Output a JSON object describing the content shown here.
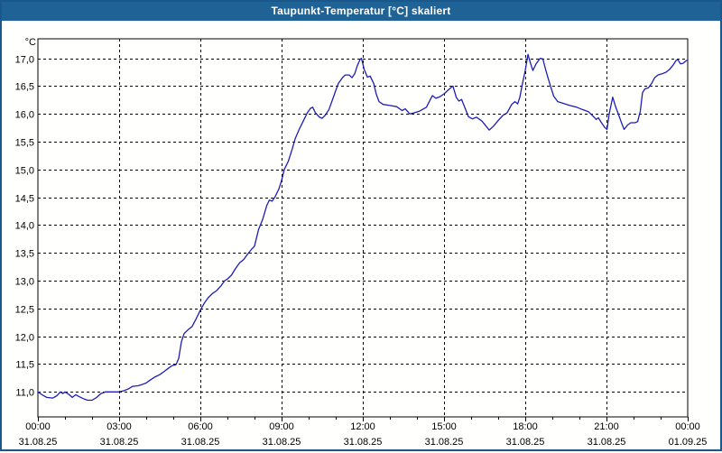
{
  "window": {
    "title": "Taupunkt-Temperatur [°C] skaliert",
    "title_bar_color": "#1f6396",
    "border_color": "#1a578a",
    "background_color": "#ffffff"
  },
  "chart_data": {
    "type": "line",
    "title": "Taupunkt-Temperatur [°C] skaliert",
    "legend": "none",
    "grid": "dashed",
    "y_axis": {
      "unit_label": "°C",
      "tick_values": [
        17.0,
        16.5,
        16.0,
        15.5,
        15.0,
        14.5,
        14.0,
        13.5,
        13.0,
        12.5,
        12.0,
        11.5,
        11.0
      ],
      "tick_labels": [
        "17,0",
        "16,5",
        "16,0",
        "15,5",
        "15,0",
        "14,5",
        "14,0",
        "13,5",
        "13,0",
        "12,5",
        "12,0",
        "11,5",
        "11,0"
      ],
      "axis_min": 10.55,
      "axis_max": 17.35
    },
    "x_axis": {
      "range_hours": [
        0,
        24
      ],
      "major_tick_hours": [
        0,
        3,
        6,
        9,
        12,
        15,
        18,
        21,
        24
      ],
      "minor_tick_interval_hours": 1,
      "grid_hours": [
        3,
        6,
        9,
        12,
        15,
        18,
        21
      ],
      "time_labels": [
        "00:00",
        "03:00",
        "06:00",
        "09:00",
        "12:00",
        "15:00",
        "18:00",
        "21:00",
        "00:00"
      ],
      "date_labels": [
        "31.08.25",
        "31.08.25",
        "31.08.25",
        "31.08.25",
        "31.08.25",
        "31.08.25",
        "31.08.25",
        "31.08.25",
        "01.09.25"
      ]
    },
    "series": [
      {
        "name": "Taupunkt-Temperatur",
        "color": "#1d1db5",
        "x_hours": [
          0.0,
          0.15,
          0.33,
          0.55,
          0.7,
          0.83,
          0.92,
          1.0,
          1.13,
          1.27,
          1.4,
          1.5,
          1.67,
          1.83,
          2.0,
          2.17,
          2.33,
          2.5,
          2.75,
          3.0,
          3.17,
          3.33,
          3.5,
          3.7,
          3.83,
          4.0,
          4.17,
          4.33,
          4.5,
          4.67,
          4.83,
          4.95,
          5.1,
          5.2,
          5.3,
          5.4,
          5.55,
          5.7,
          5.85,
          6.0,
          6.15,
          6.3,
          6.45,
          6.6,
          6.75,
          6.9,
          7.0,
          7.15,
          7.3,
          7.45,
          7.6,
          7.75,
          7.9,
          8.0,
          8.15,
          8.3,
          8.45,
          8.55,
          8.65,
          8.75,
          8.9,
          9.0,
          9.1,
          9.25,
          9.4,
          9.5,
          9.65,
          9.8,
          9.95,
          10.07,
          10.15,
          10.25,
          10.4,
          10.5,
          10.62,
          10.75,
          10.9,
          11.0,
          11.1,
          11.25,
          11.35,
          11.5,
          11.6,
          11.7,
          11.8,
          11.9,
          11.95,
          12.05,
          12.17,
          12.27,
          12.4,
          12.5,
          12.6,
          12.75,
          13.0,
          13.25,
          13.45,
          13.57,
          13.73,
          13.9,
          14.1,
          14.35,
          14.57,
          14.7,
          14.85,
          15.0,
          15.2,
          15.33,
          15.45,
          15.55,
          15.65,
          15.78,
          15.9,
          16.05,
          16.2,
          16.4,
          16.55,
          16.67,
          16.83,
          17.0,
          17.17,
          17.33,
          17.5,
          17.62,
          17.72,
          17.8,
          17.9,
          18.0,
          18.1,
          18.2,
          18.28,
          18.4,
          18.55,
          18.65,
          18.75,
          18.9,
          19.05,
          19.2,
          19.4,
          19.65,
          19.9,
          20.1,
          20.33,
          20.5,
          20.62,
          20.7,
          20.8,
          20.93,
          21.02,
          21.1,
          21.23,
          21.33,
          21.45,
          21.57,
          21.65,
          21.78,
          21.9,
          22.05,
          22.15,
          22.25,
          22.33,
          22.42,
          22.55,
          22.67,
          22.78,
          22.9,
          23.05,
          23.2,
          23.33,
          23.45,
          23.57,
          23.63,
          23.73,
          23.83,
          23.93,
          24.0
        ],
        "values_c": [
          11.0,
          10.95,
          10.9,
          10.89,
          10.93,
          11.0,
          10.97,
          11.0,
          10.96,
          10.9,
          10.95,
          10.92,
          10.88,
          10.85,
          10.85,
          10.9,
          10.97,
          11.0,
          11.0,
          11.0,
          11.02,
          11.05,
          11.1,
          11.11,
          11.13,
          11.16,
          11.22,
          11.27,
          11.31,
          11.37,
          11.43,
          11.47,
          11.49,
          11.6,
          11.9,
          12.05,
          12.12,
          12.18,
          12.32,
          12.47,
          12.6,
          12.7,
          12.77,
          12.82,
          12.9,
          13.0,
          13.03,
          13.1,
          13.22,
          13.32,
          13.38,
          13.48,
          13.57,
          13.62,
          13.92,
          14.1,
          14.35,
          14.45,
          14.43,
          14.5,
          14.65,
          14.8,
          15.0,
          15.15,
          15.38,
          15.55,
          15.72,
          15.87,
          16.02,
          16.1,
          16.12,
          16.02,
          15.94,
          15.92,
          15.98,
          16.08,
          16.28,
          16.42,
          16.55,
          16.65,
          16.7,
          16.7,
          16.65,
          16.72,
          16.87,
          16.98,
          17.0,
          16.8,
          16.66,
          16.68,
          16.55,
          16.35,
          16.22,
          16.17,
          16.15,
          16.13,
          16.06,
          16.09,
          16.0,
          16.02,
          16.05,
          16.12,
          16.33,
          16.28,
          16.31,
          16.36,
          16.45,
          16.5,
          16.3,
          16.23,
          16.26,
          16.1,
          15.95,
          15.91,
          15.94,
          15.87,
          15.78,
          15.71,
          15.78,
          15.88,
          15.97,
          16.02,
          16.17,
          16.22,
          16.18,
          16.3,
          16.55,
          16.78,
          17.07,
          16.9,
          16.78,
          16.9,
          17.0,
          16.99,
          16.8,
          16.55,
          16.32,
          16.22,
          16.19,
          16.15,
          16.12,
          16.08,
          16.04,
          15.96,
          15.9,
          15.93,
          15.85,
          15.76,
          15.72,
          16.0,
          16.3,
          16.14,
          15.98,
          15.82,
          15.72,
          15.8,
          15.84,
          15.84,
          15.86,
          16.05,
          16.38,
          16.45,
          16.47,
          16.55,
          16.65,
          16.7,
          16.72,
          16.75,
          16.8,
          16.87,
          16.96,
          16.98,
          16.9,
          16.91,
          16.95,
          16.97
        ]
      }
    ],
    "colors": {
      "grid": "#000000",
      "axis": "#000000",
      "plot_background": "#ffffff"
    }
  }
}
